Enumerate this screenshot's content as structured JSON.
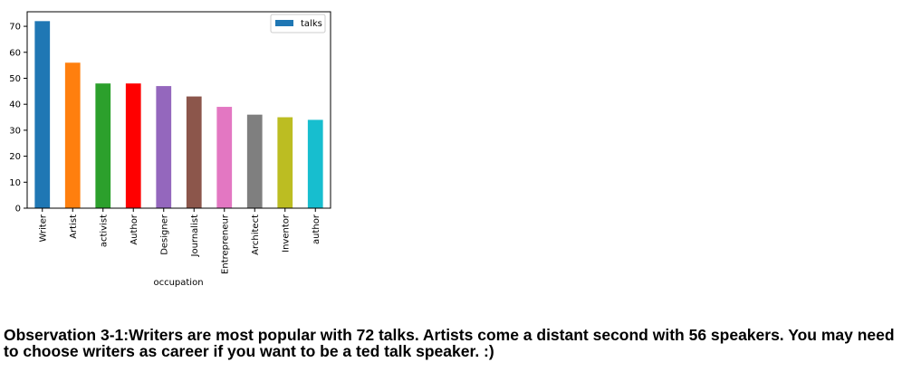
{
  "chart_data": {
    "type": "bar",
    "categories": [
      "Writer",
      "Artist",
      "activist",
      "Author",
      "Designer",
      "Journalist",
      "Entrepreneur",
      "Architect",
      "Inventor",
      "author"
    ],
    "series": [
      {
        "name": "talks",
        "values": [
          72,
          56,
          48,
          48,
          47,
          43,
          39,
          36,
          35,
          34
        ]
      }
    ],
    "colors": [
      "#1f77b4",
      "#ff7f0e",
      "#2ca02c",
      "#ff0000",
      "#9467bd",
      "#8c564b",
      "#e377c2",
      "#7f7f7f",
      "#bcbd22",
      "#17becf"
    ],
    "title": "",
    "xlabel": "occupation",
    "ylabel": "",
    "ylim": [
      0,
      75.6
    ],
    "yticks": [
      0,
      10,
      20,
      30,
      40,
      50,
      60,
      70
    ],
    "grid": false,
    "legend": "top-right"
  },
  "observation": "Observation 3-1:Writers are most popular with 72 talks. Artists come a distant second with 56 speakers. You may need to choose writers as career if you want to be a ted talk speaker. :)"
}
